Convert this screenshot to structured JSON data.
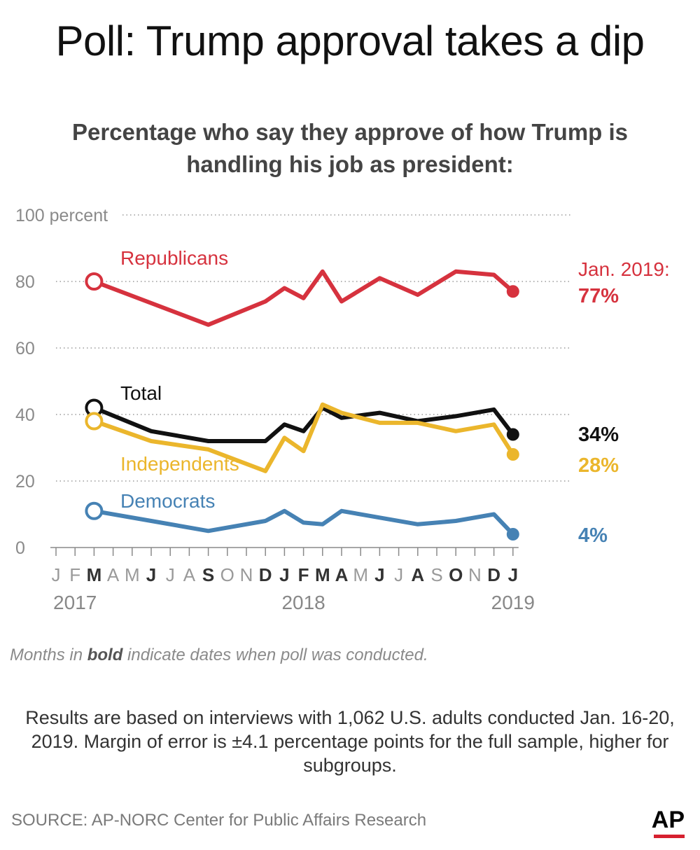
{
  "title": "Poll: Trump approval takes a dip",
  "subtitle": "Percentage who say they approve of how Trump is handling his job as president:",
  "note_prefix": "Months in ",
  "note_bold": "bold",
  "note_suffix": " indicate dates when poll was conducted.",
  "description": "Results are based on interviews with 1,062 U.S. adults conducted Jan. 16-20, 2019. Margin of error is ±4.1 percentage points for the full sample, higher for subgroups.",
  "source": "SOURCE: AP-NORC Center for Public Affairs Research",
  "logo": "AP",
  "chart_data": {
    "type": "line",
    "ylim": [
      0,
      100
    ],
    "yticks": [
      {
        "value": 100,
        "label": "100 percent"
      },
      {
        "value": 80,
        "label": "80"
      },
      {
        "value": 60,
        "label": "60"
      },
      {
        "value": 40,
        "label": "40"
      },
      {
        "value": 20,
        "label": "20"
      },
      {
        "value": 0,
        "label": "0"
      }
    ],
    "grid": true,
    "months": [
      {
        "label": "J",
        "bold": false
      },
      {
        "label": "F",
        "bold": false
      },
      {
        "label": "M",
        "bold": true
      },
      {
        "label": "A",
        "bold": false
      },
      {
        "label": "M",
        "bold": false
      },
      {
        "label": "J",
        "bold": true
      },
      {
        "label": "J",
        "bold": false
      },
      {
        "label": "A",
        "bold": false
      },
      {
        "label": "S",
        "bold": true
      },
      {
        "label": "O",
        "bold": false
      },
      {
        "label": "N",
        "bold": false
      },
      {
        "label": "D",
        "bold": true
      },
      {
        "label": "J",
        "bold": true
      },
      {
        "label": "F",
        "bold": true
      },
      {
        "label": "M",
        "bold": true
      },
      {
        "label": "A",
        "bold": true
      },
      {
        "label": "M",
        "bold": false
      },
      {
        "label": "J",
        "bold": true
      },
      {
        "label": "J",
        "bold": false
      },
      {
        "label": "A",
        "bold": true
      },
      {
        "label": "S",
        "bold": false
      },
      {
        "label": "O",
        "bold": true
      },
      {
        "label": "N",
        "bold": false
      },
      {
        "label": "D",
        "bold": true
      },
      {
        "label": "J",
        "bold": true
      }
    ],
    "years": [
      {
        "label": "2017",
        "month_index": 1
      },
      {
        "label": "2018",
        "month_index": 13
      },
      {
        "label": "2019",
        "month_index": 24
      }
    ],
    "series": [
      {
        "name": "Republicans",
        "color": "#d6323e",
        "points": [
          [
            2,
            80
          ],
          [
            8,
            67
          ],
          [
            11,
            74
          ],
          [
            12,
            78
          ],
          [
            13,
            75
          ],
          [
            14,
            83
          ],
          [
            15,
            74
          ],
          [
            17,
            81
          ],
          [
            19,
            76
          ],
          [
            21,
            83
          ],
          [
            23,
            82
          ],
          [
            24,
            77
          ]
        ],
        "end_prefix": "Jan. 2019:",
        "end_label": "77%"
      },
      {
        "name": "Total",
        "color": "#111111",
        "points": [
          [
            2,
            42
          ],
          [
            5,
            35
          ],
          [
            8,
            32
          ],
          [
            11,
            32
          ],
          [
            12,
            37
          ],
          [
            13,
            35
          ],
          [
            14,
            42
          ],
          [
            15,
            39
          ],
          [
            17,
            40.5
          ],
          [
            19,
            38
          ],
          [
            21,
            39.5
          ],
          [
            23,
            41.5
          ],
          [
            24,
            34
          ]
        ],
        "end_label": "34%"
      },
      {
        "name": "Independents",
        "color": "#ebb62c",
        "points": [
          [
            2,
            38
          ],
          [
            5,
            32
          ],
          [
            8,
            29.5
          ],
          [
            11,
            23
          ],
          [
            12,
            33
          ],
          [
            13,
            29
          ],
          [
            14,
            43
          ],
          [
            15,
            40.5
          ],
          [
            17,
            37.5
          ],
          [
            19,
            37.5
          ],
          [
            21,
            35
          ],
          [
            23,
            37
          ],
          [
            24,
            28
          ]
        ],
        "end_label": "28%"
      },
      {
        "name": "Democrats",
        "color": "#4682b4",
        "points": [
          [
            2,
            11
          ],
          [
            5,
            8
          ],
          [
            8,
            5
          ],
          [
            11,
            8
          ],
          [
            12,
            11
          ],
          [
            13,
            7.5
          ],
          [
            14,
            7
          ],
          [
            15,
            11
          ],
          [
            17,
            9
          ],
          [
            19,
            7
          ],
          [
            21,
            8
          ],
          [
            23,
            10
          ],
          [
            24,
            4
          ]
        ],
        "end_label": "4%"
      }
    ]
  }
}
